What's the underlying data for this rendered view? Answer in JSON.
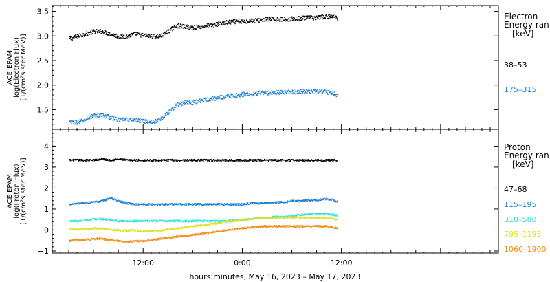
{
  "chart_data": [
    {
      "type": "scatter",
      "ylabel": [
        "ACE EPAM",
        "log(Electron Flux)",
        "[1/(cm²s ster MeV)]"
      ],
      "ylim": [
        1.1,
        3.62
      ],
      "yticks": [
        "1.5",
        "2.0",
        "2.5",
        "3.0",
        "3.5"
      ],
      "ytick_values": [
        1.5,
        2.0,
        2.5,
        3.0,
        3.5
      ],
      "legend_title": [
        "Electron",
        "Energy ran",
        "[keV]"
      ],
      "series": [
        {
          "name": "38–53",
          "color": "#000000",
          "x": [
            3.0,
            4,
            5,
            6,
            7,
            8,
            9,
            10,
            11,
            12,
            13,
            14,
            15,
            16,
            17,
            18,
            19,
            20,
            21,
            22,
            23,
            24,
            25,
            26,
            27,
            28,
            29,
            30,
            31,
            32,
            33,
            34,
            35,
            35.5
          ],
          "values": [
            2.95,
            3.0,
            3.05,
            3.1,
            3.1,
            3.05,
            3.0,
            3.0,
            3.05,
            3.02,
            3.0,
            3.0,
            3.1,
            3.22,
            3.2,
            3.18,
            3.2,
            3.22,
            3.25,
            3.28,
            3.3,
            3.3,
            3.32,
            3.33,
            3.35,
            3.35,
            3.35,
            3.36,
            3.37,
            3.38,
            3.38,
            3.4,
            3.4,
            3.38
          ]
        },
        {
          "name": "175–315",
          "color": "#1a7fd4",
          "x": [
            3.0,
            4,
            5,
            6,
            7,
            8,
            9,
            10,
            11,
            12,
            13,
            14,
            15,
            16,
            17,
            18,
            19,
            20,
            21,
            22,
            23,
            24,
            25,
            26,
            27,
            28,
            29,
            30,
            31,
            32,
            33,
            34,
            35,
            35.5
          ],
          "values": [
            1.25,
            1.25,
            1.3,
            1.4,
            1.4,
            1.35,
            1.3,
            1.3,
            1.3,
            1.28,
            1.25,
            1.3,
            1.45,
            1.6,
            1.65,
            1.65,
            1.7,
            1.72,
            1.75,
            1.78,
            1.8,
            1.82,
            1.83,
            1.85,
            1.85,
            1.86,
            1.86,
            1.87,
            1.88,
            1.88,
            1.88,
            1.87,
            1.85,
            1.8
          ]
        }
      ]
    },
    {
      "type": "scatter",
      "ylabel": [
        "ACE EPAM",
        "log(Proton Flux)",
        "[1/(cm²s ster MeV)]"
      ],
      "ylim": [
        -1.1,
        4.8
      ],
      "yticks": [
        "−1",
        "0",
        "1",
        "2",
        "3",
        "4"
      ],
      "ytick_values": [
        -1,
        0,
        1,
        2,
        3,
        4
      ],
      "legend_title": [
        "Proton",
        "Energy ran",
        "[keV]"
      ],
      "series": [
        {
          "name": "47–68",
          "color": "#000000",
          "x": [
            3.0,
            4,
            5,
            6,
            7,
            8,
            9,
            10,
            11,
            12,
            13,
            14,
            15,
            16,
            17,
            18,
            19,
            20,
            21,
            22,
            23,
            24,
            25,
            26,
            27,
            28,
            29,
            30,
            31,
            32,
            33,
            34,
            35,
            35.5
          ],
          "values": [
            3.35,
            3.35,
            3.35,
            3.35,
            3.4,
            3.35,
            3.4,
            3.35,
            3.35,
            3.35,
            3.35,
            3.35,
            3.35,
            3.35,
            3.35,
            3.35,
            3.35,
            3.35,
            3.35,
            3.35,
            3.35,
            3.35,
            3.35,
            3.35,
            3.35,
            3.35,
            3.35,
            3.35,
            3.35,
            3.35,
            3.35,
            3.35,
            3.35,
            3.35
          ]
        },
        {
          "name": "115–195",
          "color": "#1a7fd4",
          "x": [
            3.0,
            4,
            5,
            6,
            7,
            8,
            9,
            10,
            11,
            12,
            13,
            14,
            15,
            16,
            17,
            18,
            19,
            20,
            21,
            22,
            23,
            24,
            25,
            26,
            27,
            28,
            29,
            30,
            31,
            32,
            33,
            34,
            35,
            35.5
          ],
          "values": [
            1.25,
            1.3,
            1.3,
            1.35,
            1.4,
            1.55,
            1.4,
            1.3,
            1.25,
            1.25,
            1.25,
            1.25,
            1.25,
            1.25,
            1.25,
            1.25,
            1.25,
            1.25,
            1.25,
            1.25,
            1.25,
            1.25,
            1.3,
            1.3,
            1.3,
            1.35,
            1.35,
            1.4,
            1.4,
            1.45,
            1.45,
            1.5,
            1.45,
            1.35
          ]
        },
        {
          "name": "310–580",
          "color": "#2ee0e0",
          "x": [
            3.0,
            4,
            5,
            6,
            7,
            8,
            9,
            10,
            11,
            12,
            13,
            14,
            15,
            16,
            17,
            18,
            19,
            20,
            21,
            22,
            23,
            24,
            25,
            26,
            27,
            28,
            29,
            30,
            31,
            32,
            33,
            34,
            35,
            35.5
          ],
          "values": [
            0.45,
            0.45,
            0.5,
            0.55,
            0.55,
            0.5,
            0.45,
            0.45,
            0.45,
            0.45,
            0.45,
            0.45,
            0.45,
            0.45,
            0.45,
            0.45,
            0.45,
            0.45,
            0.45,
            0.45,
            0.5,
            0.5,
            0.55,
            0.6,
            0.6,
            0.65,
            0.65,
            0.7,
            0.75,
            0.8,
            0.8,
            0.8,
            0.75,
            0.7
          ]
        },
        {
          "name": "795–1193",
          "color": "#e0e020",
          "x": [
            3.0,
            4,
            5,
            6,
            7,
            8,
            9,
            10,
            11,
            12,
            13,
            14,
            15,
            16,
            17,
            18,
            19,
            20,
            21,
            22,
            23,
            24,
            25,
            26,
            27,
            28,
            29,
            30,
            31,
            32,
            33,
            34,
            35,
            35.5
          ],
          "values": [
            0.05,
            0.05,
            0.05,
            0.1,
            0.1,
            0.05,
            0.0,
            0.0,
            0.0,
            -0.05,
            0.0,
            0.0,
            0.05,
            0.1,
            0.15,
            0.2,
            0.25,
            0.3,
            0.35,
            0.4,
            0.45,
            0.5,
            0.55,
            0.6,
            0.6,
            0.6,
            0.6,
            0.62,
            0.62,
            0.6,
            0.6,
            0.6,
            0.55,
            0.5
          ]
        },
        {
          "name": "1060–1900",
          "color": "#f08c10",
          "x": [
            3.0,
            4,
            5,
            6,
            7,
            8,
            9,
            10,
            11,
            12,
            13,
            14,
            15,
            16,
            17,
            18,
            19,
            20,
            21,
            22,
            23,
            24,
            25,
            26,
            27,
            28,
            29,
            30,
            31,
            32,
            33,
            34,
            35,
            35.5
          ],
          "values": [
            -0.5,
            -0.45,
            -0.45,
            -0.4,
            -0.4,
            -0.45,
            -0.5,
            -0.55,
            -0.5,
            -0.5,
            -0.45,
            -0.4,
            -0.35,
            -0.3,
            -0.25,
            -0.2,
            -0.15,
            -0.1,
            -0.05,
            0.0,
            0.05,
            0.1,
            0.15,
            0.2,
            0.2,
            0.2,
            0.2,
            0.2,
            0.2,
            0.2,
            0.2,
            0.2,
            0.15,
            0.1
          ]
        }
      ]
    }
  ],
  "x_axis": {
    "range_hours": [
      1.0,
      55.0
    ],
    "ticks": [
      {
        "value": 12,
        "label": "12:00"
      },
      {
        "value": 24,
        "label": "0:00"
      },
      {
        "value": 36,
        "label": "12:00"
      }
    ],
    "label": "hours:minutes, May 16, 2023 – May 17, 2023"
  }
}
